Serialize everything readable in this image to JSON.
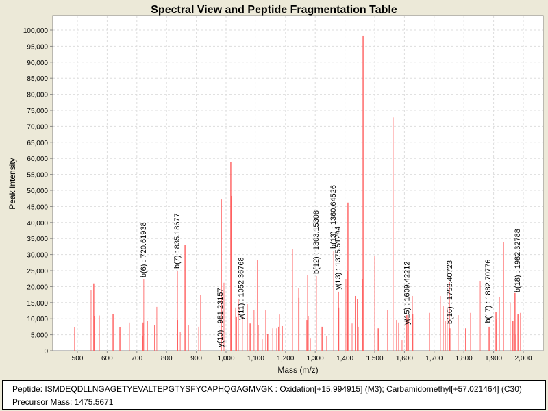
{
  "chart_data": {
    "type": "bar",
    "title": "Spectral View and Peptide Fragmentation Table",
    "xlabel": "Mass (m/z)",
    "ylabel": "Peak Intensity",
    "xlim": [
      420,
      2065
    ],
    "ylim": [
      0,
      105000
    ],
    "xticks": [
      500,
      600,
      700,
      800,
      900,
      1000,
      1100,
      1200,
      1300,
      1400,
      1500,
      1600,
      1700,
      1800,
      1900,
      2000
    ],
    "xtick_labels": [
      "500",
      "600",
      "700",
      "800",
      "900",
      "1,000",
      "1,100",
      "1,200",
      "1,300",
      "1,400",
      "1,500",
      "1,600",
      "1,700",
      "1,800",
      "1,900",
      "2,000"
    ],
    "yticks": [
      0,
      5000,
      10000,
      15000,
      20000,
      25000,
      30000,
      35000,
      40000,
      45000,
      50000,
      55000,
      60000,
      65000,
      70000,
      75000,
      80000,
      85000,
      90000,
      95000,
      100000
    ],
    "ytick_labels": [
      "0",
      "5,000",
      "10,000",
      "15,000",
      "20,000",
      "25,000",
      "30,000",
      "35,000",
      "40,000",
      "45,000",
      "50,000",
      "55,000",
      "60,000",
      "65,000",
      "70,000",
      "75,000",
      "80,000",
      "85,000",
      "90,000",
      "95,000",
      "100,000"
    ],
    "grid": true,
    "series_color": "#ff5a5a",
    "peaks": [
      [
        491,
        7300
      ],
      [
        546,
        18800
      ],
      [
        555,
        21000
      ],
      [
        558,
        10700
      ],
      [
        574,
        11000
      ],
      [
        620,
        11500
      ],
      [
        643,
        7300
      ],
      [
        675,
        8800
      ],
      [
        719,
        4700
      ],
      [
        721,
        8800
      ],
      [
        723,
        22200
      ],
      [
        735,
        9400
      ],
      [
        760,
        8100
      ],
      [
        767,
        13700
      ],
      [
        836,
        25000
      ],
      [
        837,
        9600
      ],
      [
        846,
        5800
      ],
      [
        862,
        33000
      ],
      [
        873,
        7900
      ],
      [
        908,
        7500
      ],
      [
        915,
        17500
      ],
      [
        984,
        47200
      ],
      [
        993,
        21200
      ],
      [
        1016,
        58800
      ],
      [
        1018,
        48300
      ],
      [
        1032,
        13500
      ],
      [
        1035,
        10500
      ],
      [
        1041,
        16100
      ],
      [
        1055,
        10700
      ],
      [
        1071,
        14500
      ],
      [
        1081,
        8500
      ],
      [
        1094,
        12800
      ],
      [
        1106,
        28200
      ],
      [
        1108,
        8100
      ],
      [
        1122,
        3600
      ],
      [
        1134,
        12600
      ],
      [
        1140,
        5300
      ],
      [
        1157,
        7000
      ],
      [
        1171,
        7000
      ],
      [
        1177,
        7500
      ],
      [
        1180,
        11300
      ],
      [
        1189,
        7700
      ],
      [
        1223,
        31800
      ],
      [
        1244,
        19600
      ],
      [
        1245,
        16500
      ],
      [
        1272,
        9600
      ],
      [
        1274,
        23700
      ],
      [
        1276,
        10700
      ],
      [
        1283,
        3800
      ],
      [
        1304,
        23300
      ],
      [
        1323,
        7500
      ],
      [
        1339,
        4500
      ],
      [
        1362,
        31200
      ],
      [
        1378,
        18400
      ],
      [
        1379,
        13500
      ],
      [
        1403,
        22400
      ],
      [
        1410,
        46200
      ],
      [
        1409,
        24800
      ],
      [
        1424,
        8500
      ],
      [
        1435,
        17100
      ],
      [
        1442,
        16200
      ],
      [
        1445,
        7500
      ],
      [
        1458,
        22400
      ],
      [
        1461,
        98300
      ],
      [
        1500,
        29700
      ],
      [
        1512,
        7000
      ],
      [
        1544,
        12800
      ],
      [
        1562,
        72800
      ],
      [
        1574,
        9600
      ],
      [
        1581,
        8800
      ],
      [
        1592,
        3200
      ],
      [
        1608,
        11100
      ],
      [
        1613,
        10300
      ],
      [
        1627,
        17100
      ],
      [
        1628,
        11500
      ],
      [
        1684,
        11800
      ],
      [
        1721,
        17100
      ],
      [
        1730,
        13900
      ],
      [
        1737,
        9400
      ],
      [
        1744,
        13500
      ],
      [
        1751,
        21400
      ],
      [
        1753,
        7000
      ],
      [
        1781,
        11100
      ],
      [
        1806,
        7000
      ],
      [
        1823,
        11800
      ],
      [
        1855,
        21800
      ],
      [
        1885,
        7500
      ],
      [
        1908,
        12000
      ],
      [
        1910,
        10000
      ],
      [
        1919,
        16700
      ],
      [
        1933,
        33800
      ],
      [
        1956,
        15000
      ],
      [
        1965,
        9200
      ],
      [
        1972,
        18000
      ],
      [
        1975,
        5100
      ],
      [
        1982,
        11500
      ],
      [
        1991,
        11800
      ]
    ],
    "annotations": [
      {
        "label": "b(6) : 720.61938",
        "mz": 723,
        "intensity": 22200
      },
      {
        "label": "b(7) : 835.18677",
        "mz": 836,
        "intensity": 25000
      },
      {
        "label": "y(10) : 981.23157",
        "mz": 981,
        "intensity": 500
      },
      {
        "label": "y(11) : 1052.36768",
        "mz": 1052,
        "intensity": 9000
      },
      {
        "label": "b(12) : 1303.15308",
        "mz": 1304,
        "intensity": 23300
      },
      {
        "label": "b(13) : 1360.64526",
        "mz": 1362,
        "intensity": 31200
      },
      {
        "label": "y(13) : 1375.51294",
        "mz": 1378,
        "intensity": 18400
      },
      {
        "label": "y(15) : 1609.42212",
        "mz": 1609,
        "intensity": 7500
      },
      {
        "label": "b(16) : 1753.40723",
        "mz": 1753,
        "intensity": 7700
      },
      {
        "label": "b(17) : 1882.70776",
        "mz": 1883,
        "intensity": 8000
      },
      {
        "label": "b(18) : 1982.32788",
        "mz": 1982,
        "intensity": 17500
      }
    ]
  },
  "info": {
    "peptide": "Peptide: ISMDEQDLLNGAGETYEVALTEPGTYSFYCAPHQGAGMVGK : Oxidation[+15.994915] (M3); Carbamidomethyl[+57.021464] (C30)",
    "precursor": "Precursor Mass: 1475.5671"
  }
}
